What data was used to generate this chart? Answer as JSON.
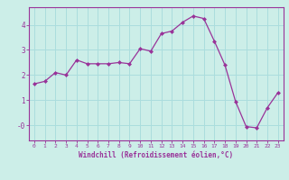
{
  "x": [
    0,
    1,
    2,
    3,
    4,
    5,
    6,
    7,
    8,
    9,
    10,
    11,
    12,
    13,
    14,
    15,
    16,
    17,
    18,
    19,
    20,
    21,
    22,
    23
  ],
  "y": [
    1.65,
    1.75,
    2.1,
    2.0,
    2.6,
    2.45,
    2.45,
    2.45,
    2.5,
    2.45,
    3.05,
    2.95,
    3.65,
    3.75,
    4.1,
    4.35,
    4.25,
    3.35,
    2.4,
    0.95,
    -0.05,
    -0.1,
    0.7,
    1.3
  ],
  "line_color": "#993399",
  "marker": "D",
  "marker_size": 2.0,
  "bg_color": "#cceee8",
  "grid_color": "#aadddd",
  "xlabel": "Windchill (Refroidissement éolien,°C)",
  "xlabel_color": "#993399",
  "tick_color": "#993399",
  "axis_line_color": "#993399",
  "ylim": [
    -0.6,
    4.7
  ],
  "xlim": [
    -0.5,
    23.5
  ],
  "yticks": [
    0,
    1,
    2,
    3,
    4
  ],
  "ytick_labels": [
    "-0",
    "1",
    "2",
    "3",
    "4"
  ],
  "xticks": [
    0,
    1,
    2,
    3,
    4,
    5,
    6,
    7,
    8,
    9,
    10,
    11,
    12,
    13,
    14,
    15,
    16,
    17,
    18,
    19,
    20,
    21,
    22,
    23
  ]
}
